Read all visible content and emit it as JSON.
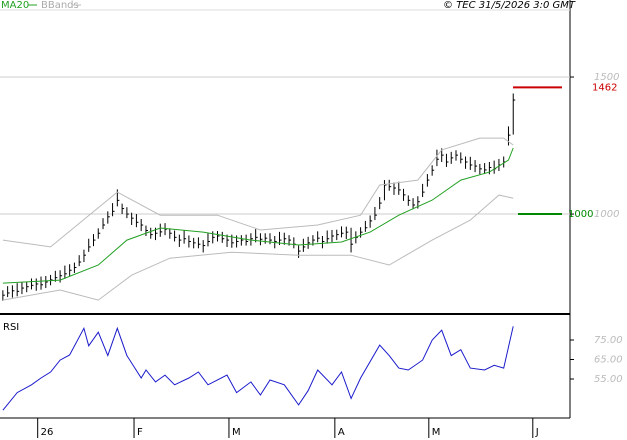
{
  "chart_data": [
    {
      "type": "ohlc",
      "source": "© TEC 31/5/2026 3:0 GMT",
      "xlim": [
        -0.6,
        118.9
      ],
      "ylim": [
        639,
        1781
      ],
      "yticks": [
        1000,
        1500
      ],
      "grid": true,
      "bar_color": "#000000",
      "high": [
        722,
        737,
        740,
        748,
        752,
        753,
        765,
        765,
        772,
        774,
        778,
        793,
        795,
        812,
        817,
        823,
        850,
        870,
        910,
        927,
        948,
        985,
        1010,
        1040,
        1090,
        1038,
        1025,
        1005,
        1000,
        982,
        958,
        950,
        950,
        965,
        967,
        948,
        940,
        925,
        940,
        922,
        913,
        915,
        905,
        930,
        937,
        938,
        935,
        925,
        925,
        922,
        923,
        925,
        930,
        945,
        930,
        930,
        930,
        920,
        935,
        932,
        923,
        915,
        885,
        910,
        917,
        923,
        937,
        920,
        940,
        942,
        943,
        955,
        954,
        950,
        937,
        952,
        975,
        995,
        1026,
        1062,
        1124,
        1125,
        1115,
        1118,
        1092,
        1068,
        1058,
        1065,
        1110,
        1146,
        1178,
        1235,
        1240,
        1220,
        1227,
        1233,
        1225,
        1210,
        1209,
        1197,
        1183,
        1186,
        1190,
        1195,
        1201,
        1210,
        1320,
        1440
      ],
      "low": [
        684,
        697,
        695,
        700,
        708,
        715,
        725,
        720,
        724,
        730,
        740,
        753,
        750,
        764,
        773,
        785,
        810,
        825,
        862,
        883,
        910,
        945,
        965,
        992,
        1028,
        1000,
        985,
        960,
        952,
        938,
        920,
        910,
        905,
        917,
        923,
        910,
        900,
        880,
        892,
        878,
        875,
        875,
        860,
        882,
        893,
        900,
        895,
        880,
        877,
        878,
        885,
        885,
        885,
        897,
        886,
        892,
        890,
        875,
        887,
        888,
        885,
        875,
        840,
        862,
        873,
        885,
        897,
        875,
        892,
        898,
        905,
        915,
        909,
        860,
        893,
        914,
        935,
        950,
        978,
        1018,
        1050,
        1085,
        1070,
        1070,
        1048,
        1030,
        1018,
        1020,
        1062,
        1100,
        1140,
        1175,
        1190,
        1172,
        1183,
        1195,
        1185,
        1165,
        1161,
        1153,
        1145,
        1146,
        1145,
        1147,
        1157,
        1170,
        1250,
        1290
      ],
      "close": [
        704,
        712,
        720,
        718,
        730,
        735,
        740,
        745,
        742,
        752,
        760,
        768,
        775,
        782,
        795,
        805,
        825,
        850,
        880,
        905,
        930,
        960,
        990,
        1010,
        1050,
        1020,
        1000,
        985,
        970,
        960,
        940,
        925,
        930,
        935,
        945,
        930,
        915,
        905,
        910,
        900,
        895,
        890,
        885,
        900,
        915,
        920,
        910,
        905,
        895,
        900,
        905,
        900,
        910,
        915,
        908,
        912,
        905,
        900,
        905,
        910,
        905,
        890,
        865,
        880,
        895,
        905,
        912,
        900,
        910,
        920,
        925,
        930,
        934,
        890,
        915,
        934,
        950,
        975,
        996,
        1040,
        1106,
        1100,
        1095,
        1088,
        1070,
        1050,
        1033,
        1045,
        1080,
        1124,
        1160,
        1200,
        1215,
        1190,
        1205,
        1215,
        1200,
        1190,
        1179,
        1175,
        1165,
        1161,
        1170,
        1165,
        1179,
        1190,
        1288,
        1416
      ],
      "series": [
        {
          "name": "MA20",
          "color": "#22a022",
          "x": [
            0,
            12,
            20,
            26,
            33,
            42,
            52,
            62,
            71,
            77,
            83,
            90,
            96,
            102,
            106,
            107
          ],
          "values": [
            748,
            759,
            814,
            905,
            949,
            934,
            905,
            887,
            898,
            934,
            996,
            1051,
            1124,
            1153,
            1197,
            1241
          ]
        },
        {
          "name": "BBands",
          "color": "#bbbbbb",
          "upper": {
            "x": [
              0,
              10,
              24,
              33,
              45,
              54,
              66,
              75,
              79,
              87,
              92,
              100,
              105,
              107
            ],
            "values": [
              905,
              880,
              1080,
              996,
              996,
              942,
              960,
              996,
              1106,
              1124,
              1234,
              1277,
              1277,
              1252
            ]
          },
          "lower": {
            "x": [
              0,
              12,
              20,
              27,
              35,
              48,
              62,
              73,
              81,
              90,
              98,
              104,
              107
            ],
            "values": [
              686,
              723,
              686,
              777,
              839,
              861,
              850,
              850,
              814,
              905,
              978,
              1069,
              1058
            ]
          }
        }
      ],
      "levels": [
        {
          "value": 1462,
          "color": "#cc0000"
        },
        {
          "value": 1000,
          "color": "#008800"
        }
      ]
    },
    {
      "type": "line",
      "title": "RSI",
      "xlim": [
        -0.6,
        118.9
      ],
      "ylim": [
        35,
        87.3
      ],
      "yticks": [
        {
          "value": 75,
          "label": "75.00"
        },
        {
          "value": 65,
          "label": "65.00"
        },
        {
          "value": 55,
          "label": "55.00"
        }
      ],
      "xticks": [
        {
          "value": 7.3,
          "label": "26"
        },
        {
          "value": 27.5,
          "label": "F"
        },
        {
          "value": 47.4,
          "label": "M"
        },
        {
          "value": 69.6,
          "label": "A"
        },
        {
          "value": 89.3,
          "label": "M"
        },
        {
          "value": 111.1,
          "label": "J"
        }
      ],
      "series": [
        {
          "color": "#1a1acc",
          "x": [
            0,
            3,
            6,
            8,
            10,
            12,
            14,
            17,
            18,
            20,
            22,
            24,
            26,
            29,
            30,
            32,
            34,
            36,
            39,
            41,
            43,
            47,
            49,
            52,
            54,
            56,
            59,
            62,
            64,
            66,
            69,
            71,
            73,
            75,
            79,
            81,
            83,
            85,
            88,
            90,
            92,
            94,
            96,
            98,
            101,
            103,
            105,
            107
          ],
          "values": [
            39,
            48,
            52,
            55.5,
            58.6,
            64.7,
            67.3,
            81,
            72,
            79,
            67,
            81,
            67,
            55.5,
            59.6,
            53.5,
            57,
            52,
            55.5,
            58.6,
            52,
            57,
            48,
            53.5,
            46.8,
            54.5,
            52,
            41.7,
            49,
            59.6,
            52,
            58.6,
            45,
            55.5,
            72.4,
            67,
            60.6,
            59.6,
            64.7,
            75,
            80,
            67,
            70,
            60.6,
            59.6,
            62,
            60.6,
            82
          ]
        }
      ]
    }
  ]
}
